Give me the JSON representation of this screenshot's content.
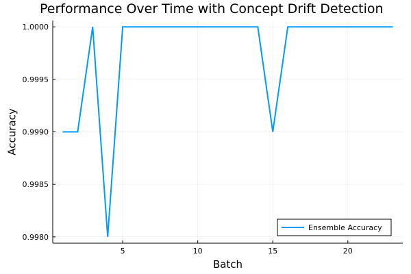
{
  "chart_data": {
    "type": "line",
    "title": "Performance Over Time with Concept Drift Detection",
    "xlabel": "Batch",
    "ylabel": "Accuracy",
    "xlim": [
      0.34,
      23.66
    ],
    "ylim": [
      0.99794,
      1.00006
    ],
    "xticks": [
      5,
      10,
      15,
      20
    ],
    "xtick_labels": [
      "5",
      "10",
      "15",
      "20"
    ],
    "yticks": [
      0.998,
      0.9985,
      0.999,
      0.9995,
      1.0
    ],
    "ytick_labels": [
      "0.9980",
      "0.9985",
      "0.9990",
      "0.9995",
      "1.0000"
    ],
    "grid": true,
    "legend_position": "bottom-right",
    "series": [
      {
        "name": "Ensemble Accuracy",
        "color": "#009AFA",
        "x": [
          1,
          2,
          3,
          4,
          5,
          6,
          7,
          8,
          9,
          10,
          11,
          12,
          13,
          14,
          15,
          16,
          17,
          18,
          19,
          20,
          21,
          22,
          23
        ],
        "y": [
          0.999,
          0.999,
          1.0,
          0.998,
          1.0,
          1.0,
          1.0,
          1.0,
          1.0,
          1.0,
          1.0,
          1.0,
          1.0,
          1.0,
          0.999,
          1.0,
          1.0,
          1.0,
          1.0,
          1.0,
          1.0,
          1.0,
          1.0
        ]
      }
    ]
  }
}
